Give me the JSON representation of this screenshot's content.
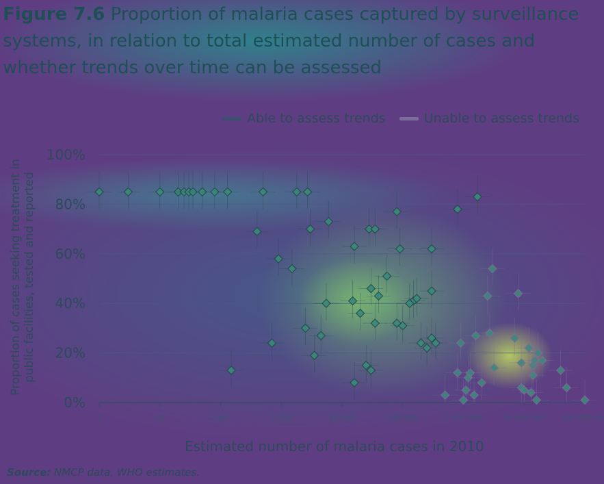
{
  "figure": {
    "number": "Figure 7.6",
    "title": "Proportion of malaria cases captured by surveillance systems, in relation to total estimated number of cases and whether trends over time can be assessed",
    "source_label": "Source:",
    "source_text": "NMCP data, WHO estimates."
  },
  "colors": {
    "able": "#3c4f6e",
    "unable": "#7b6d99",
    "marker_fill": "#3b8a7a",
    "marker_stroke": "#244a4e",
    "axis": "#3a4a66",
    "grid": "#4b5a84"
  },
  "chart_data": {
    "type": "scatter",
    "xlabel": "Estimated number of malaria cases in 2010",
    "ylabel": "Proportion of cases seeking treatment in public facilities, tested and reported",
    "x_scale": "log",
    "xlim": [
      1,
      100000000
    ],
    "ylim": [
      0,
      100
    ],
    "x_ticks": [
      1,
      10,
      100,
      1000,
      10000,
      100000,
      1000000,
      10000000,
      100000000
    ],
    "x_tick_labels": [
      "1",
      "10",
      "100",
      "1 000",
      "10 000",
      "100 000",
      "1 000 000",
      "10 000 000",
      "100 000 000"
    ],
    "y_ticks": [
      0,
      20,
      40,
      60,
      80,
      100
    ],
    "y_tick_labels": [
      "0%",
      "20%",
      "40%",
      "60%",
      "80%",
      "100%"
    ],
    "grid": true,
    "legend_position": "top-right",
    "series": [
      {
        "name": "Able to assess trends",
        "points": [
          {
            "x": 1,
            "y": 85
          },
          {
            "x": 3,
            "y": 85
          },
          {
            "x": 10,
            "y": 85
          },
          {
            "x": 20,
            "y": 85
          },
          {
            "x": 25,
            "y": 85
          },
          {
            "x": 30,
            "y": 85
          },
          {
            "x": 35,
            "y": 85
          },
          {
            "x": 50,
            "y": 85
          },
          {
            "x": 80,
            "y": 85
          },
          {
            "x": 130,
            "y": 85
          },
          {
            "x": 500,
            "y": 85
          },
          {
            "x": 1800,
            "y": 85
          },
          {
            "x": 2700,
            "y": 85
          },
          {
            "x": 150,
            "y": 13
          },
          {
            "x": 400,
            "y": 69
          },
          {
            "x": 900,
            "y": 58
          },
          {
            "x": 1500,
            "y": 54
          },
          {
            "x": 700,
            "y": 24
          },
          {
            "x": 3000,
            "y": 70
          },
          {
            "x": 6000,
            "y": 73
          },
          {
            "x": 2500,
            "y": 30
          },
          {
            "x": 3500,
            "y": 19
          },
          {
            "x": 4500,
            "y": 27
          },
          {
            "x": 5500,
            "y": 40
          },
          {
            "x": 16000,
            "y": 63
          },
          {
            "x": 28000,
            "y": 70
          },
          {
            "x": 35000,
            "y": 70
          },
          {
            "x": 80000,
            "y": 77
          },
          {
            "x": 90000,
            "y": 62
          },
          {
            "x": 55000,
            "y": 51
          },
          {
            "x": 30000,
            "y": 46
          },
          {
            "x": 40000,
            "y": 43
          },
          {
            "x": 15000,
            "y": 41
          },
          {
            "x": 20000,
            "y": 36
          },
          {
            "x": 35000,
            "y": 32
          },
          {
            "x": 80000,
            "y": 32
          },
          {
            "x": 100000,
            "y": 31
          },
          {
            "x": 150000,
            "y": 41
          },
          {
            "x": 130000,
            "y": 40
          },
          {
            "x": 170000,
            "y": 42
          },
          {
            "x": 25000,
            "y": 15
          },
          {
            "x": 30000,
            "y": 13
          },
          {
            "x": 16000,
            "y": 8
          },
          {
            "x": 300000,
            "y": 62
          },
          {
            "x": 300000,
            "y": 45
          },
          {
            "x": 200000,
            "y": 24
          },
          {
            "x": 250000,
            "y": 22
          },
          {
            "x": 300000,
            "y": 26
          },
          {
            "x": 350000,
            "y": 24
          },
          {
            "x": 800000,
            "y": 78
          },
          {
            "x": 1700000,
            "y": 83
          }
        ]
      },
      {
        "name": "Unable to assess trends",
        "points": [
          {
            "x": 900000,
            "y": 24
          },
          {
            "x": 1600000,
            "y": 27
          },
          {
            "x": 3000000,
            "y": 54
          },
          {
            "x": 2500000,
            "y": 43
          },
          {
            "x": 2700000,
            "y": 28
          },
          {
            "x": 3200000,
            "y": 14
          },
          {
            "x": 2000000,
            "y": 8
          },
          {
            "x": 800000,
            "y": 12
          },
          {
            "x": 1200000,
            "y": 10
          },
          {
            "x": 1300000,
            "y": 12
          },
          {
            "x": 1100000,
            "y": 5
          },
          {
            "x": 1000000,
            "y": 1
          },
          {
            "x": 1500000,
            "y": 3
          },
          {
            "x": 500000,
            "y": 3
          },
          {
            "x": 8000000,
            "y": 44
          },
          {
            "x": 7000000,
            "y": 26
          },
          {
            "x": 9000000,
            "y": 16
          },
          {
            "x": 12000000,
            "y": 22
          },
          {
            "x": 14000000,
            "y": 15
          },
          {
            "x": 15000000,
            "y": 17
          },
          {
            "x": 17000000,
            "y": 20
          },
          {
            "x": 20000000,
            "y": 17
          },
          {
            "x": 14000000,
            "y": 11
          },
          {
            "x": 9000000,
            "y": 6
          },
          {
            "x": 10000000,
            "y": 5
          },
          {
            "x": 13000000,
            "y": 4
          },
          {
            "x": 16000000,
            "y": 1
          },
          {
            "x": 40000000,
            "y": 13
          },
          {
            "x": 50000000,
            "y": 6
          },
          {
            "x": 100000000,
            "y": 1
          }
        ]
      }
    ]
  }
}
